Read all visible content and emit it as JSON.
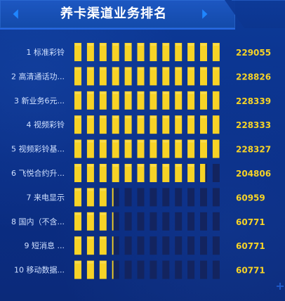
{
  "header": {
    "title": "养卡渠道业务排名",
    "left_icon": "chevron-left-icon",
    "right_icon": "chevron-right-icon"
  },
  "colors": {
    "background": "#0b2a7a",
    "header": "#1a53bf",
    "accent": "#1f86ff",
    "segment_on": "#f7d326",
    "segment_off": "#13245f",
    "label": "#cfe0ff",
    "value": "#f7d326"
  },
  "chart_data": {
    "type": "bar",
    "title": "养卡渠道业务排名",
    "categories": [
      "1 标准彩铃",
      "2 高清通话功...",
      "3 新业务6元...",
      "4 视频彩铃",
      "5 视频彩铃基...",
      "6 飞悦合约升...",
      "7 来电显示",
      "8 国内（不含...",
      "9 短消息  ...",
      "10 移动数据..."
    ],
    "values": [
      229055,
      228826,
      228339,
      228333,
      228327,
      204806,
      60959,
      60771,
      60771,
      60771
    ],
    "value_labels": [
      "229055",
      "228826",
      "228339",
      "228333",
      "228327",
      "204806",
      "60959",
      "60771",
      "60771",
      "60771"
    ],
    "max": 229055,
    "segments_total": 12,
    "grid": false
  }
}
